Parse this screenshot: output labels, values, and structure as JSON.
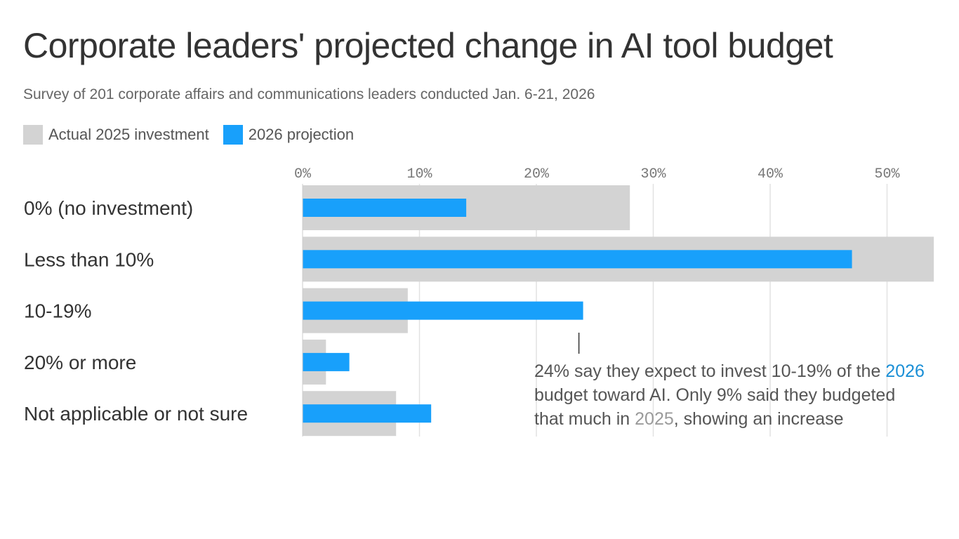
{
  "chart_data": {
    "type": "bar",
    "orientation": "horizontal",
    "title": "Corporate leaders' projected change in AI tool budget",
    "subtitle": "Survey of 201 corporate affairs and communications leaders conducted Jan. 6-21, 2026",
    "categories": [
      "0% (no investment)",
      "Less than 10%",
      "10-19%",
      "20% or more",
      "Not applicable or not sure"
    ],
    "series": [
      {
        "name": "Actual 2025 investment",
        "color": "#d3d3d3",
        "values": [
          28,
          54,
          9,
          2,
          8
        ]
      },
      {
        "name": "2026 projection",
        "color": "#18a0fb",
        "values": [
          14,
          47,
          24,
          4,
          11
        ]
      }
    ],
    "xlim": [
      0,
      54
    ],
    "xticks": [
      0,
      10,
      20,
      30,
      40,
      50
    ],
    "xtick_labels": [
      "0%",
      "10%",
      "20%",
      "30%",
      "40%",
      "50%"
    ],
    "grid": true,
    "legend_position": "top-left",
    "annotation": {
      "target_category": "10-19%",
      "part1": "24% say they expect to invest 10-19% of the ",
      "highlight1": "2026",
      "part2": " budget toward AI. Only 9% said they budgeted that much in ",
      "highlight2": "2025",
      "part3": ", showing an increase"
    }
  }
}
